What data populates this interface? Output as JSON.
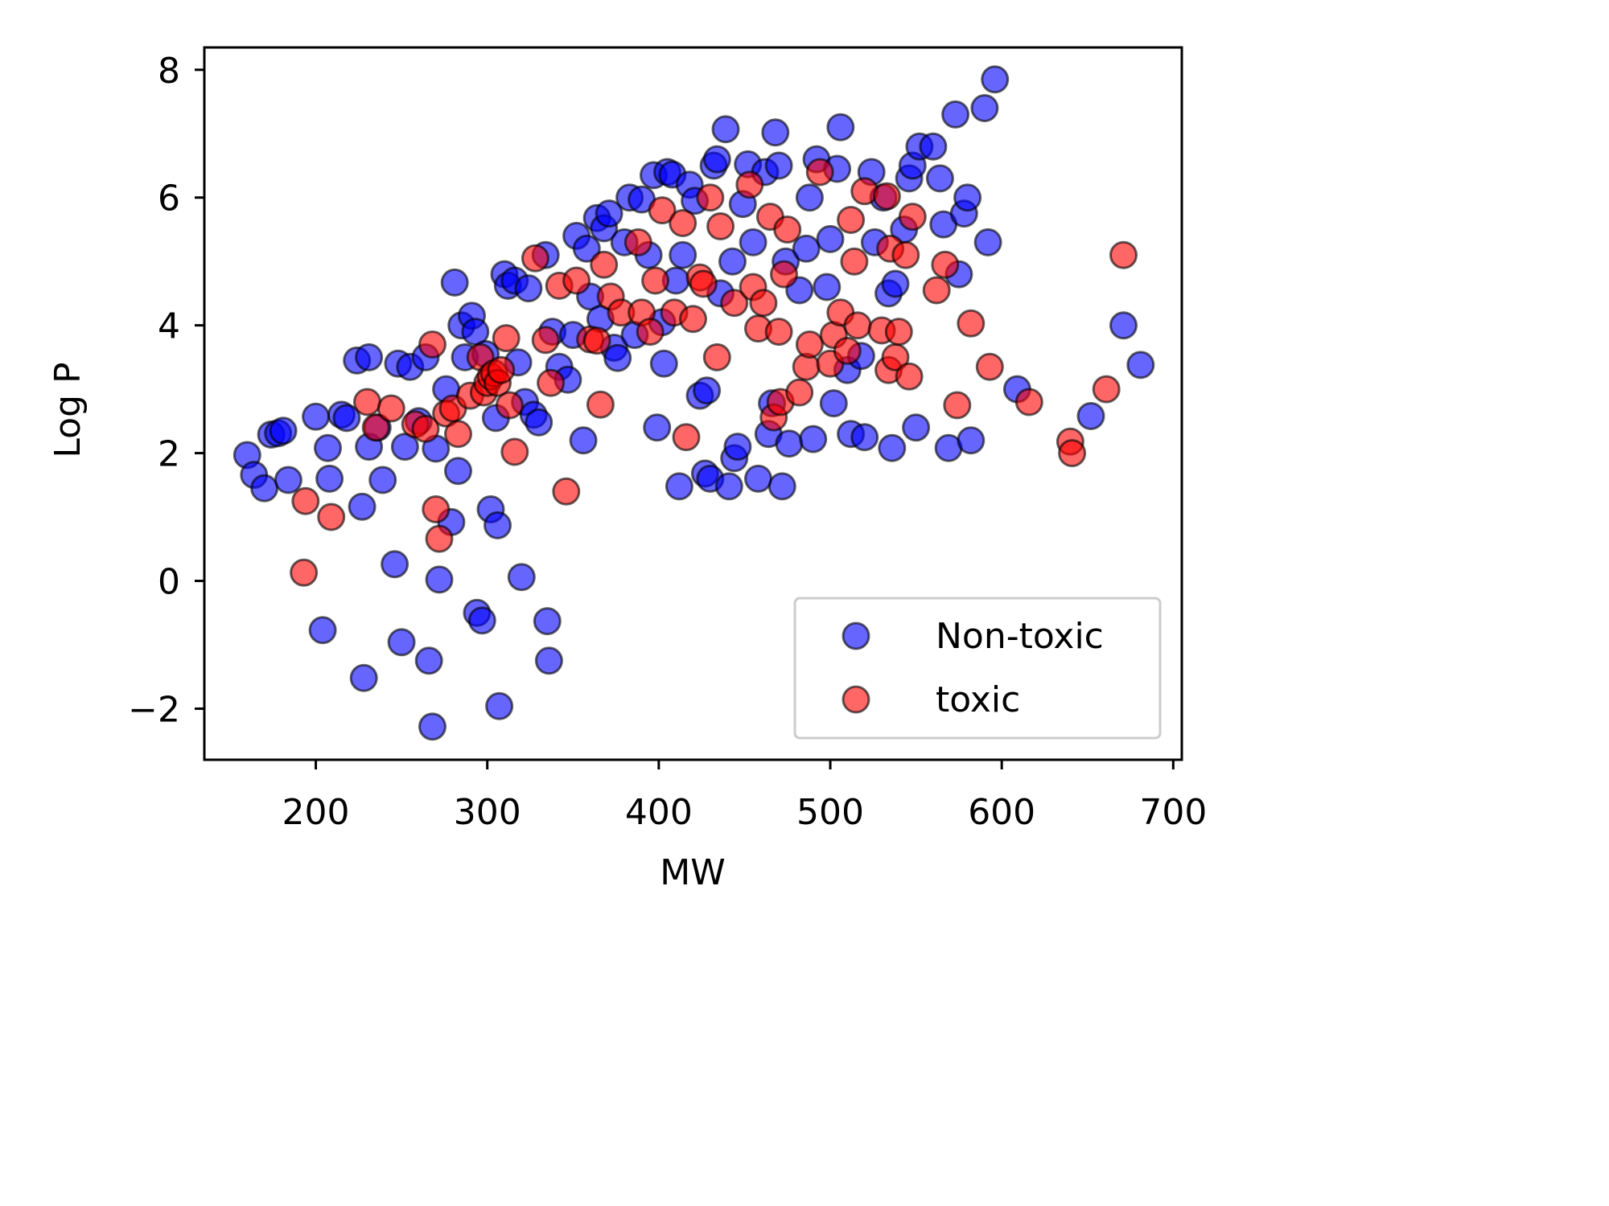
{
  "chart_data": {
    "type": "scatter",
    "title": "",
    "xlabel": "MW",
    "ylabel": "Log P",
    "xlim": [
      135,
      705
    ],
    "ylim": [
      -2.8,
      8.35
    ],
    "x_ticks": [
      200,
      300,
      400,
      500,
      600,
      700
    ],
    "y_ticks": [
      -2,
      0,
      2,
      4,
      6,
      8
    ],
    "x_tick_labels": [
      "200",
      "300",
      "400",
      "500",
      "600",
      "700"
    ],
    "y_tick_labels": [
      "−2",
      "0",
      "2",
      "4",
      "6",
      "8"
    ],
    "grid": false,
    "legend_position": "lower right",
    "series": [
      {
        "name": "Non-toxic",
        "color": "#0000ff",
        "points": [
          [
            160,
            1.97
          ],
          [
            164,
            1.66
          ],
          [
            170,
            1.45
          ],
          [
            174,
            2.29
          ],
          [
            178,
            2.31
          ],
          [
            181,
            2.35
          ],
          [
            184,
            1.58
          ],
          [
            200,
            2.57
          ],
          [
            204,
            -0.77
          ],
          [
            207,
            2.08
          ],
          [
            208,
            1.6
          ],
          [
            215,
            2.6
          ],
          [
            218,
            2.55
          ],
          [
            224,
            3.45
          ],
          [
            227,
            1.16
          ],
          [
            228,
            -1.52
          ],
          [
            231,
            3.5
          ],
          [
            231,
            2.1
          ],
          [
            236,
            2.4
          ],
          [
            239,
            1.58
          ],
          [
            246,
            0.26
          ],
          [
            248,
            3.4
          ],
          [
            250,
            -0.96
          ],
          [
            252,
            2.1
          ],
          [
            255,
            3.35
          ],
          [
            260,
            2.5
          ],
          [
            264,
            3.5
          ],
          [
            266,
            -1.25
          ],
          [
            268,
            -2.28
          ],
          [
            270,
            2.07
          ],
          [
            272,
            0.02
          ],
          [
            276,
            3.0
          ],
          [
            279,
            0.92
          ],
          [
            281,
            4.67
          ],
          [
            283,
            1.72
          ],
          [
            285,
            4.0
          ],
          [
            287,
            3.5
          ],
          [
            291,
            4.15
          ],
          [
            293,
            3.9
          ],
          [
            294,
            -0.5
          ],
          [
            297,
            -0.62
          ],
          [
            299,
            3.55
          ],
          [
            302,
            1.12
          ],
          [
            305,
            2.55
          ],
          [
            306,
            0.87
          ],
          [
            307,
            -1.96
          ],
          [
            310,
            4.8
          ],
          [
            312,
            4.62
          ],
          [
            316,
            4.7
          ],
          [
            318,
            3.42
          ],
          [
            320,
            0.06
          ],
          [
            322,
            2.8
          ],
          [
            324,
            4.58
          ],
          [
            327,
            2.6
          ],
          [
            330,
            2.48
          ],
          [
            334,
            5.1
          ],
          [
            335,
            -0.63
          ],
          [
            336,
            -1.25
          ],
          [
            338,
            3.9
          ],
          [
            342,
            3.35
          ],
          [
            347,
            3.15
          ],
          [
            350,
            3.85
          ],
          [
            352,
            5.4
          ],
          [
            356,
            2.2
          ],
          [
            358,
            5.2
          ],
          [
            360,
            4.45
          ],
          [
            364,
            5.68
          ],
          [
            366,
            4.1
          ],
          [
            368,
            5.52
          ],
          [
            371,
            5.75
          ],
          [
            374,
            3.65
          ],
          [
            376,
            3.49
          ],
          [
            380,
            5.3
          ],
          [
            383,
            6.0
          ],
          [
            386,
            3.85
          ],
          [
            390,
            5.97
          ],
          [
            394,
            5.1
          ],
          [
            397,
            6.35
          ],
          [
            399,
            2.4
          ],
          [
            402,
            4.05
          ],
          [
            403,
            3.4
          ],
          [
            405,
            6.4
          ],
          [
            408,
            6.36
          ],
          [
            410,
            4.7
          ],
          [
            412,
            1.48
          ],
          [
            414,
            5.1
          ],
          [
            418,
            6.2
          ],
          [
            421,
            5.95
          ],
          [
            424,
            2.9
          ],
          [
            427,
            1.68
          ],
          [
            428,
            2.98
          ],
          [
            430,
            1.6
          ],
          [
            432,
            6.5
          ],
          [
            434,
            6.6
          ],
          [
            436,
            4.5
          ],
          [
            439,
            7.07
          ],
          [
            441,
            1.48
          ],
          [
            443,
            5.0
          ],
          [
            444,
            1.92
          ],
          [
            446,
            2.1
          ],
          [
            449,
            5.9
          ],
          [
            452,
            6.52
          ],
          [
            455,
            5.3
          ],
          [
            458,
            1.6
          ],
          [
            462,
            6.4
          ],
          [
            464,
            2.3
          ],
          [
            466,
            2.78
          ],
          [
            468,
            7.02
          ],
          [
            470,
            6.5
          ],
          [
            472,
            1.48
          ],
          [
            474,
            5.0
          ],
          [
            476,
            2.15
          ],
          [
            482,
            4.55
          ],
          [
            486,
            5.2
          ],
          [
            488,
            6.0
          ],
          [
            490,
            2.22
          ],
          [
            492,
            6.6
          ],
          [
            498,
            4.6
          ],
          [
            500,
            5.35
          ],
          [
            502,
            2.78
          ],
          [
            504,
            6.45
          ],
          [
            506,
            7.1
          ],
          [
            510,
            3.3
          ],
          [
            512,
            2.3
          ],
          [
            518,
            3.52
          ],
          [
            520,
            2.25
          ],
          [
            524,
            6.4
          ],
          [
            526,
            5.3
          ],
          [
            531,
            6.0
          ],
          [
            534,
            4.5
          ],
          [
            536,
            2.08
          ],
          [
            538,
            4.65
          ],
          [
            543,
            5.5
          ],
          [
            546,
            6.3
          ],
          [
            548,
            6.5
          ],
          [
            550,
            2.4
          ],
          [
            552,
            6.8
          ],
          [
            560,
            6.8
          ],
          [
            564,
            6.3
          ],
          [
            566,
            5.58
          ],
          [
            569,
            2.08
          ],
          [
            573,
            7.3
          ],
          [
            575,
            4.8
          ],
          [
            578,
            5.75
          ],
          [
            580,
            6.0
          ],
          [
            582,
            2.2
          ],
          [
            590,
            7.4
          ],
          [
            592,
            5.3
          ],
          [
            596,
            7.85
          ],
          [
            609,
            3.0
          ],
          [
            652,
            2.58
          ],
          [
            671,
            4.0
          ],
          [
            681,
            3.38
          ]
        ]
      },
      {
        "name": "toxic",
        "color": "#ff0000",
        "points": [
          [
            193,
            0.13
          ],
          [
            194,
            1.25
          ],
          [
            209,
            1.0
          ],
          [
            230,
            2.8
          ],
          [
            235,
            2.4
          ],
          [
            244,
            2.7
          ],
          [
            258,
            2.45
          ],
          [
            264,
            2.38
          ],
          [
            268,
            3.7
          ],
          [
            270,
            1.12
          ],
          [
            272,
            0.66
          ],
          [
            276,
            2.62
          ],
          [
            280,
            2.7
          ],
          [
            283,
            2.3
          ],
          [
            290,
            2.9
          ],
          [
            296,
            3.5
          ],
          [
            298,
            2.95
          ],
          [
            300,
            3.1
          ],
          [
            302,
            3.2
          ],
          [
            304,
            3.25
          ],
          [
            306,
            3.1
          ],
          [
            308,
            3.3
          ],
          [
            311,
            3.8
          ],
          [
            313,
            2.75
          ],
          [
            316,
            2.02
          ],
          [
            328,
            5.05
          ],
          [
            334,
            3.77
          ],
          [
            337,
            3.1
          ],
          [
            342,
            4.62
          ],
          [
            346,
            1.4
          ],
          [
            352,
            4.7
          ],
          [
            360,
            3.78
          ],
          [
            364,
            3.76
          ],
          [
            366,
            2.76
          ],
          [
            368,
            4.95
          ],
          [
            372,
            4.45
          ],
          [
            378,
            4.2
          ],
          [
            388,
            5.3
          ],
          [
            390,
            4.2
          ],
          [
            395,
            3.9
          ],
          [
            398,
            4.7
          ],
          [
            402,
            5.8
          ],
          [
            409,
            4.2
          ],
          [
            414,
            5.6
          ],
          [
            416,
            2.25
          ],
          [
            420,
            4.1
          ],
          [
            424,
            4.75
          ],
          [
            426,
            4.65
          ],
          [
            430,
            6.0
          ],
          [
            434,
            3.5
          ],
          [
            436,
            5.55
          ],
          [
            444,
            4.35
          ],
          [
            453,
            6.2
          ],
          [
            455,
            4.6
          ],
          [
            458,
            3.95
          ],
          [
            461,
            4.35
          ],
          [
            465,
            5.7
          ],
          [
            467,
            2.56
          ],
          [
            470,
            3.9
          ],
          [
            471,
            2.8
          ],
          [
            473,
            4.8
          ],
          [
            475,
            5.5
          ],
          [
            482,
            2.95
          ],
          [
            486,
            3.35
          ],
          [
            488,
            3.7
          ],
          [
            494,
            6.4
          ],
          [
            500,
            3.4
          ],
          [
            502,
            3.85
          ],
          [
            506,
            4.2
          ],
          [
            510,
            3.6
          ],
          [
            512,
            5.65
          ],
          [
            514,
            5.0
          ],
          [
            516,
            4.0
          ],
          [
            520,
            6.1
          ],
          [
            530,
            3.92
          ],
          [
            533,
            6.02
          ],
          [
            534,
            3.3
          ],
          [
            535,
            5.2
          ],
          [
            538,
            3.5
          ],
          [
            540,
            3.9
          ],
          [
            544,
            5.1
          ],
          [
            546,
            3.2
          ],
          [
            548,
            5.7
          ],
          [
            562,
            4.55
          ],
          [
            567,
            4.95
          ],
          [
            574,
            2.75
          ],
          [
            582,
            4.03
          ],
          [
            593,
            3.35
          ],
          [
            616,
            2.8
          ],
          [
            640,
            2.18
          ],
          [
            641,
            2.0
          ],
          [
            661,
            3.0
          ],
          [
            671,
            5.1
          ]
        ]
      }
    ]
  }
}
